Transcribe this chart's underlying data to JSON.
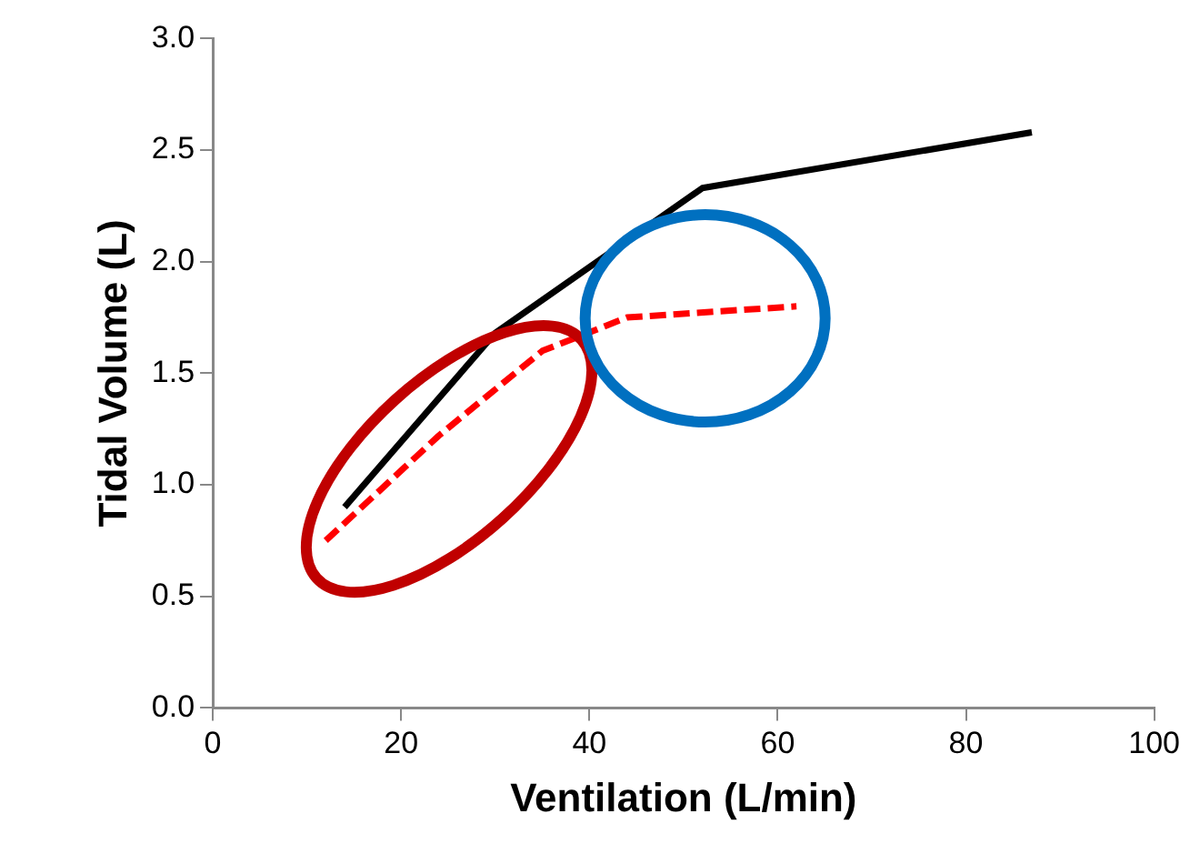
{
  "chart_data": {
    "type": "line",
    "xlabel": "Ventilation (L/min)",
    "ylabel": "Tidal Volume (L)",
    "xlim": [
      0,
      100
    ],
    "xticks": [
      0,
      20,
      40,
      60,
      80,
      100
    ],
    "ylim": [
      0,
      3
    ],
    "yticks": [
      {
        "value": 0,
        "label": "0.0"
      },
      {
        "value": 0.5,
        "label": "0.5"
      },
      {
        "value": 1,
        "label": "1.0"
      },
      {
        "value": 1.5,
        "label": "1.5"
      },
      {
        "value": 2,
        "label": "2.0"
      },
      {
        "value": 2.5,
        "label": "2.5"
      },
      {
        "value": 3,
        "label": "3.0"
      }
    ],
    "grid": false,
    "legend": false,
    "marker": "none",
    "series": [
      {
        "color": "#000000",
        "line_style": "solid",
        "x": [
          14,
          30,
          52,
          87
        ],
        "values": [
          0.9,
          1.68,
          2.33,
          2.58
        ]
      },
      {
        "color": "#ff0000",
        "line_style": "dashed",
        "x": [
          12,
          24,
          35,
          44,
          62
        ],
        "values": [
          0.75,
          1.22,
          1.6,
          1.75,
          1.8
        ]
      }
    ]
  }
}
